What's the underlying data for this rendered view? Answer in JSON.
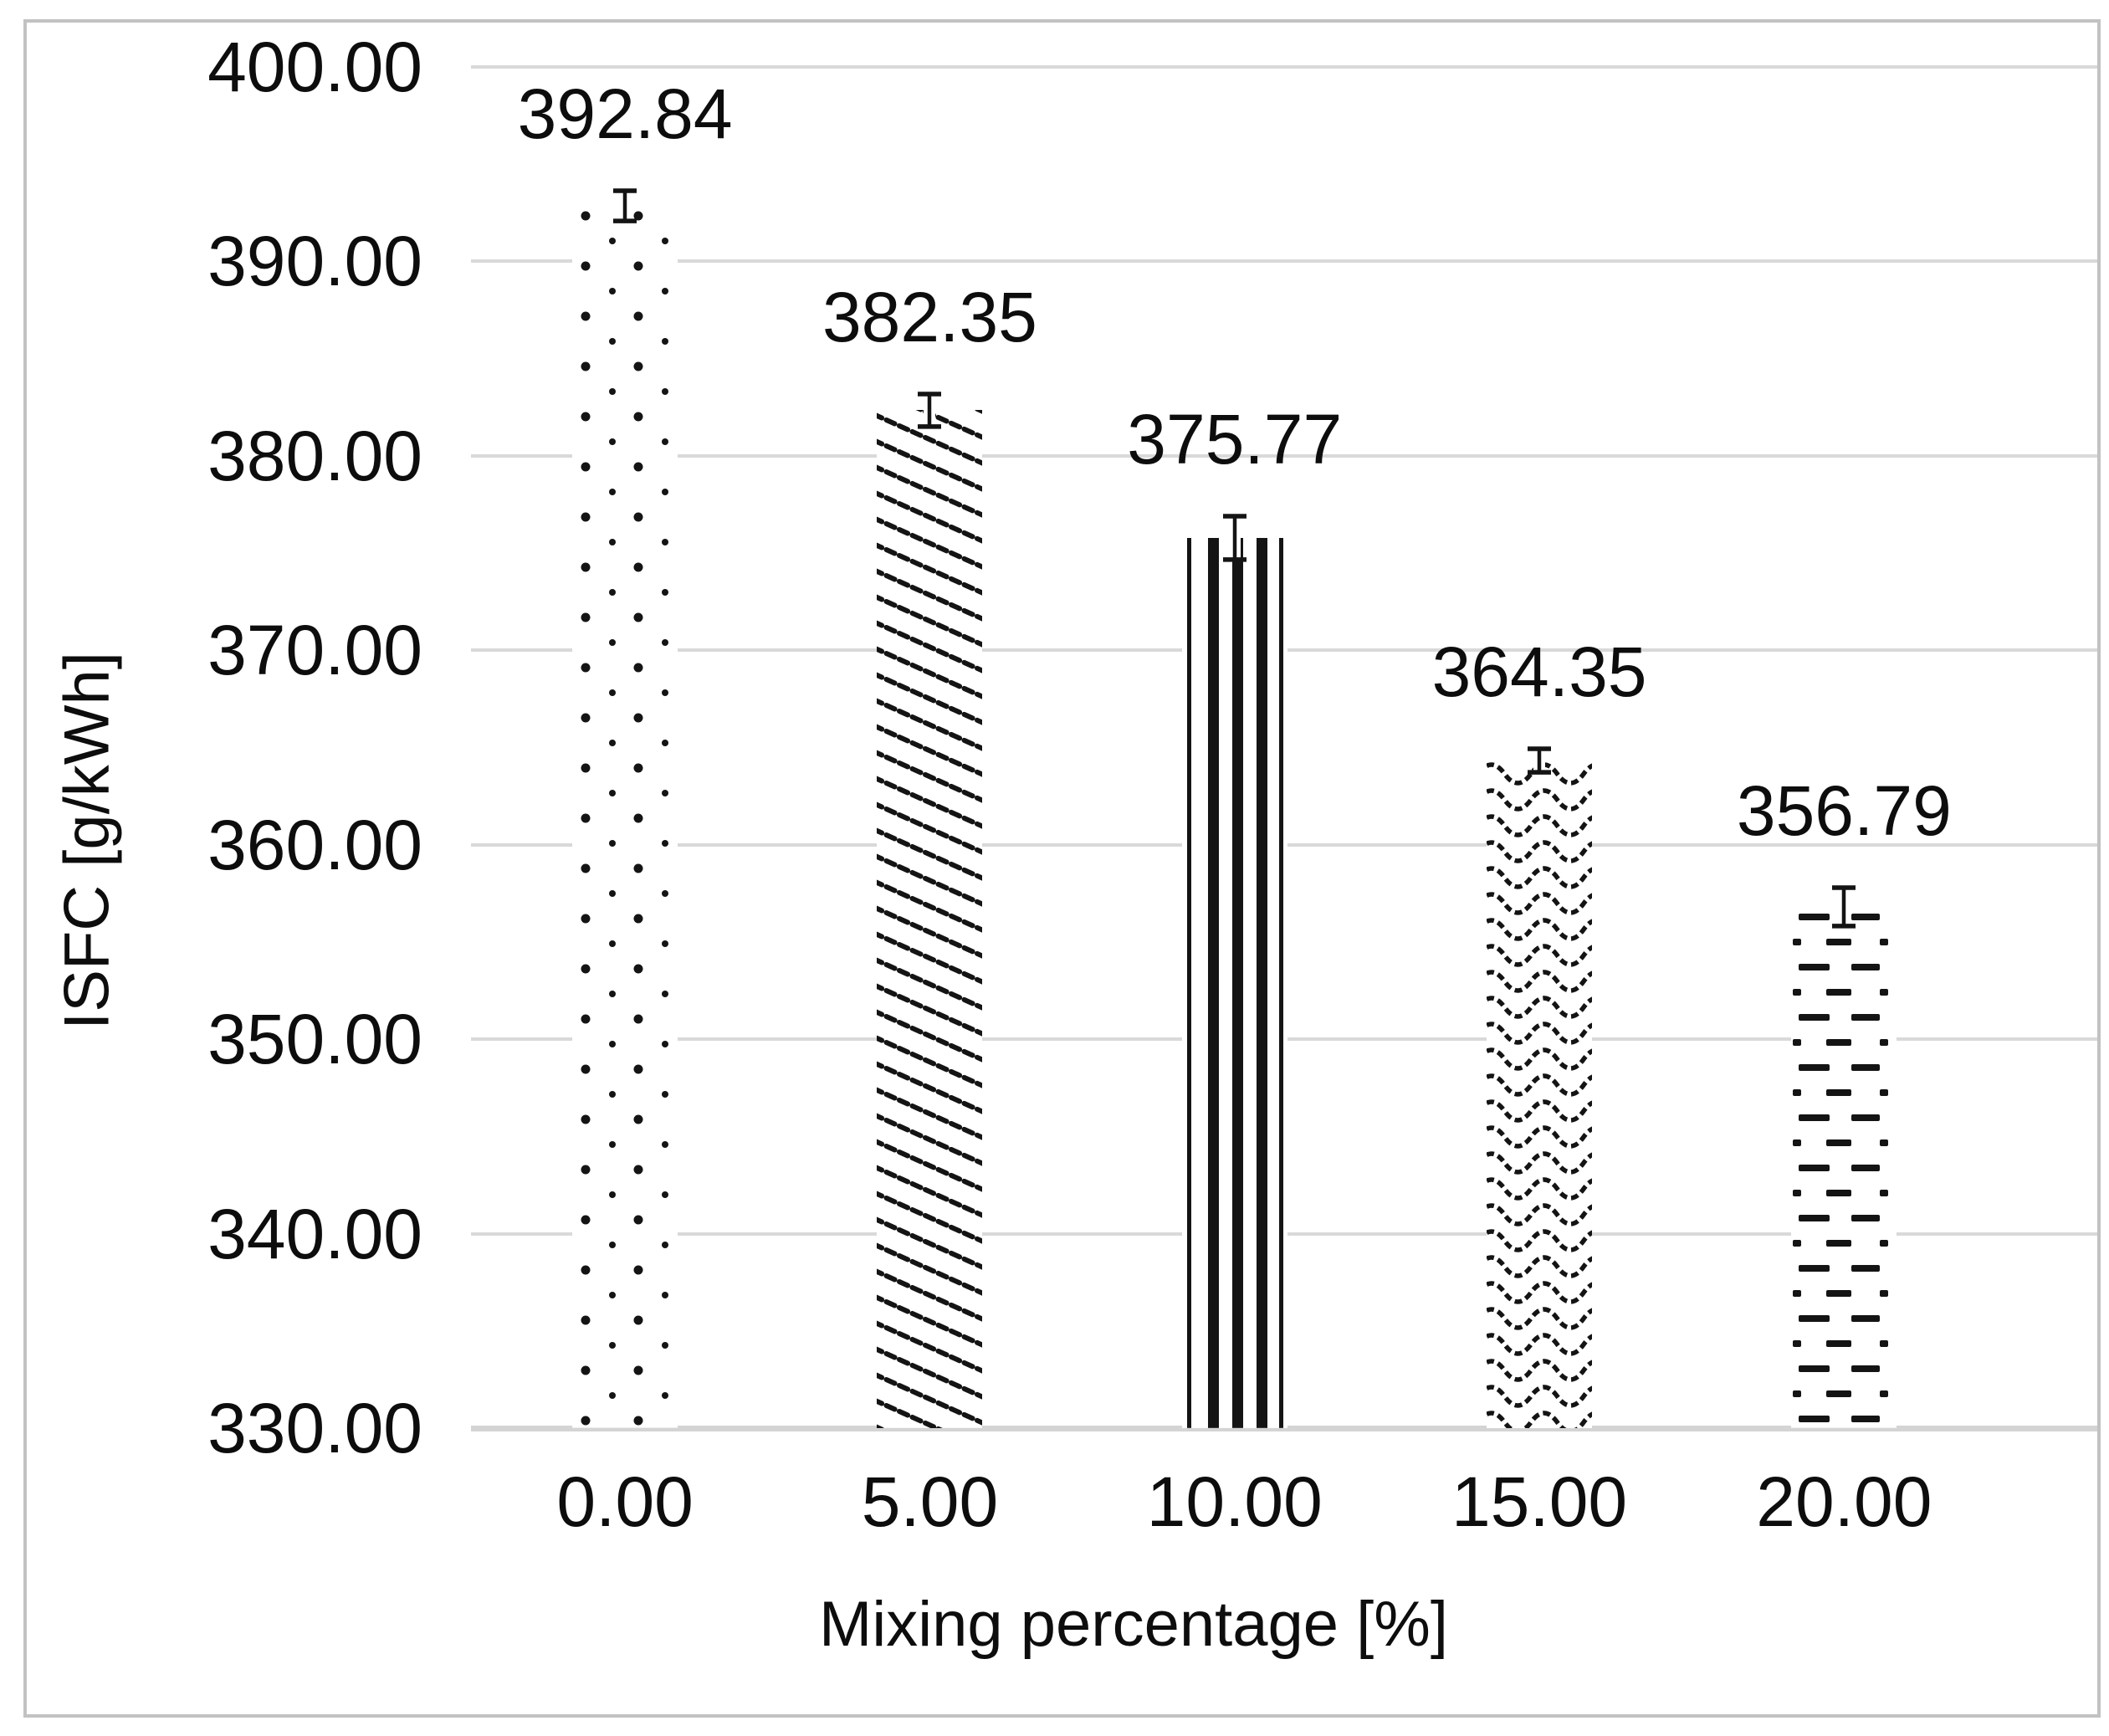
{
  "chart_data": {
    "type": "bar",
    "title": "",
    "categories": [
      "0.00",
      "5.00",
      "10.00",
      "15.00",
      "20.00"
    ],
    "values": [
      392.84,
      382.35,
      375.77,
      364.35,
      356.79
    ],
    "value_labels": [
      "392.84",
      "382.35",
      "375.77",
      "364.35",
      "356.79"
    ],
    "error_bars_units": [
      0.69,
      0.75,
      1.03,
      0.52,
      0.9
    ],
    "bar_patterns": [
      "dots",
      "diagonal-hatch",
      "vertical-lines",
      "waves",
      "horizontal-dashes"
    ],
    "xlabel": "Mixing percentage [%]",
    "ylabel": "ISFC [g/kWh]",
    "ylim": [
      330,
      400
    ],
    "ytick_step": 10,
    "ytick_labels": [
      "400.00",
      "390.00",
      "380.00",
      "370.00",
      "360.00",
      "350.00",
      "340.00",
      "330.00"
    ],
    "grid": "horizontal",
    "legend": "none",
    "bar_fill": "#ffffff",
    "colors": {
      "ink": "#141414",
      "text": "#0d0d0d",
      "gridline": "#d9d9d9",
      "axis_line": "#d4d4d4",
      "frame": "#c2c2c2",
      "background": "#ffffff"
    }
  }
}
